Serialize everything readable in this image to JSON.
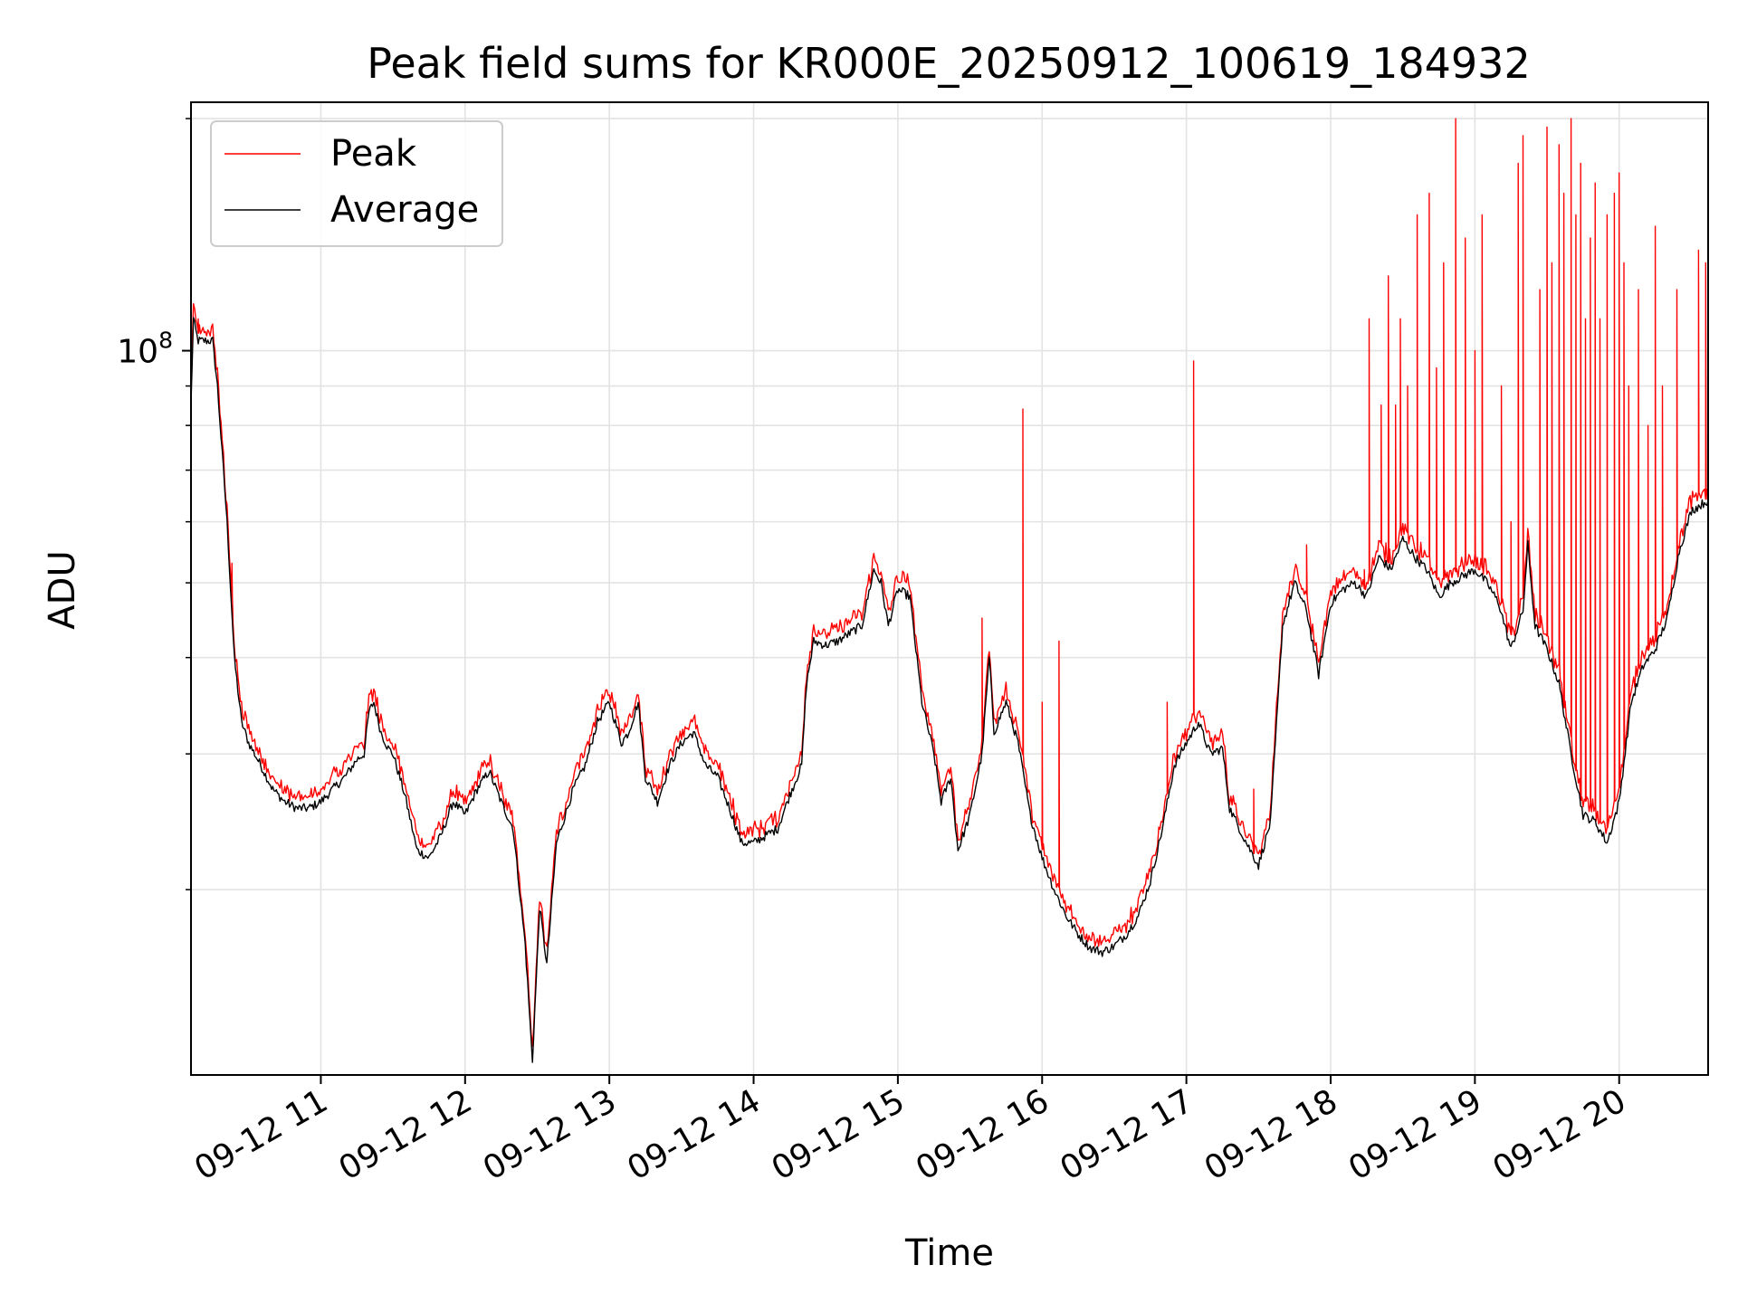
{
  "chart_data": {
    "type": "line",
    "title": "Peak field sums for KR000E_20250912_100619_184932",
    "xlabel": "Time",
    "ylabel": "ADU",
    "y_scale": "log",
    "ylim": [
      11500000,
      210000000
    ],
    "xlim": [
      "09-12 10:06",
      "09-12 20:37"
    ],
    "grid": true,
    "legend_position": "upper-left",
    "x_ticks": [
      "09-12 11",
      "09-12 12",
      "09-12 13",
      "09-12 14",
      "09-12 15",
      "09-12 16",
      "09-12 17",
      "09-12 18",
      "09-12 19",
      "09-12 20"
    ],
    "y_ticks": [
      {
        "value": 100000000,
        "label": "10",
        "exponent": "8"
      }
    ],
    "series": [
      {
        "name": "Peak",
        "color": "#ff0000"
      },
      {
        "name": "Average",
        "color": "#000000"
      }
    ],
    "average_points": [
      [
        "10:06",
        85000000
      ],
      [
        "10:07",
        110000000
      ],
      [
        "10:08",
        106000000
      ],
      [
        "10:09",
        103000000
      ],
      [
        "10:12",
        103000000
      ],
      [
        "10:15",
        103000000
      ],
      [
        "10:17",
        90000000
      ],
      [
        "10:21",
        60000000
      ],
      [
        "10:24",
        40000000
      ],
      [
        "10:27",
        33000000
      ],
      [
        "10:30",
        31000000
      ],
      [
        "10:35",
        29000000
      ],
      [
        "10:40",
        27000000
      ],
      [
        "10:45",
        26000000
      ],
      [
        "10:50",
        25500000
      ],
      [
        "10:55",
        25500000
      ],
      [
        "11:00",
        26000000
      ],
      [
        "11:05",
        27000000
      ],
      [
        "11:10",
        28000000
      ],
      [
        "11:15",
        29500000
      ],
      [
        "11:18",
        30000000
      ],
      [
        "11:20",
        34000000
      ],
      [
        "11:22",
        35000000
      ],
      [
        "11:25",
        32000000
      ],
      [
        "11:28",
        30500000
      ],
      [
        "11:30",
        30000000
      ],
      [
        "11:35",
        26500000
      ],
      [
        "11:40",
        22500000
      ],
      [
        "11:45",
        22000000
      ],
      [
        "11:50",
        23500000
      ],
      [
        "11:55",
        26000000
      ],
      [
        "12:00",
        25000000
      ],
      [
        "12:05",
        27000000
      ],
      [
        "12:10",
        28500000
      ],
      [
        "12:15",
        26000000
      ],
      [
        "12:20",
        24000000
      ],
      [
        "12:25",
        17000000
      ],
      [
        "12:28",
        12000000
      ],
      [
        "12:31",
        19000000
      ],
      [
        "12:34",
        16000000
      ],
      [
        "12:38",
        23000000
      ],
      [
        "12:45",
        27000000
      ],
      [
        "12:50",
        29000000
      ],
      [
        "12:55",
        33000000
      ],
      [
        "13:00",
        35000000
      ],
      [
        "13:05",
        31000000
      ],
      [
        "13:08",
        32000000
      ],
      [
        "13:12",
        35000000
      ],
      [
        "13:15",
        28000000
      ],
      [
        "13:20",
        26000000
      ],
      [
        "13:25",
        29000000
      ],
      [
        "13:30",
        31000000
      ],
      [
        "13:35",
        32000000
      ],
      [
        "13:40",
        29000000
      ],
      [
        "13:45",
        28000000
      ],
      [
        "13:50",
        25500000
      ],
      [
        "13:55",
        23000000
      ],
      [
        "14:00",
        23000000
      ],
      [
        "14:05",
        23500000
      ],
      [
        "14:10",
        24000000
      ],
      [
        "14:15",
        26500000
      ],
      [
        "14:20",
        29000000
      ],
      [
        "14:22",
        37000000
      ],
      [
        "14:25",
        42000000
      ],
      [
        "14:30",
        41500000
      ],
      [
        "14:35",
        42000000
      ],
      [
        "14:40",
        43000000
      ],
      [
        "14:45",
        44000000
      ],
      [
        "14:50",
        52000000
      ],
      [
        "14:53",
        50000000
      ],
      [
        "14:56",
        44000000
      ],
      [
        "15:00",
        49000000
      ],
      [
        "15:05",
        48000000
      ],
      [
        "15:10",
        35000000
      ],
      [
        "15:15",
        30000000
      ],
      [
        "15:18",
        26000000
      ],
      [
        "15:22",
        28000000
      ],
      [
        "15:25",
        22500000
      ],
      [
        "15:30",
        25000000
      ],
      [
        "15:35",
        30000000
      ],
      [
        "15:38",
        40000000
      ],
      [
        "15:40",
        32000000
      ],
      [
        "15:45",
        35000000
      ],
      [
        "15:50",
        31000000
      ],
      [
        "15:55",
        25000000
      ],
      [
        "16:00",
        22000000
      ],
      [
        "16:05",
        20000000
      ],
      [
        "16:10",
        18500000
      ],
      [
        "16:15",
        17500000
      ],
      [
        "16:20",
        16800000
      ],
      [
        "16:25",
        16600000
      ],
      [
        "16:30",
        16900000
      ],
      [
        "16:35",
        17500000
      ],
      [
        "16:40",
        18500000
      ],
      [
        "16:45",
        20500000
      ],
      [
        "16:50",
        24000000
      ],
      [
        "16:55",
        29000000
      ],
      [
        "17:00",
        31000000
      ],
      [
        "17:05",
        33000000
      ],
      [
        "17:10",
        30000000
      ],
      [
        "17:15",
        30500000
      ],
      [
        "17:18",
        25500000
      ],
      [
        "17:25",
        23000000
      ],
      [
        "17:30",
        21500000
      ],
      [
        "17:35",
        24500000
      ],
      [
        "17:40",
        44000000
      ],
      [
        "17:45",
        50000000
      ],
      [
        "17:50",
        46000000
      ],
      [
        "17:55",
        38000000
      ],
      [
        "18:00",
        47000000
      ],
      [
        "18:05",
        49000000
      ],
      [
        "18:10",
        50000000
      ],
      [
        "18:15",
        48000000
      ],
      [
        "18:20",
        54000000
      ],
      [
        "18:25",
        52000000
      ],
      [
        "18:30",
        57000000
      ],
      [
        "18:35",
        54000000
      ],
      [
        "18:40",
        52000000
      ],
      [
        "18:45",
        48000000
      ],
      [
        "18:50",
        50000000
      ],
      [
        "18:55",
        51000000
      ],
      [
        "19:00",
        52000000
      ],
      [
        "19:05",
        50000000
      ],
      [
        "19:10",
        47000000
      ],
      [
        "19:15",
        41000000
      ],
      [
        "19:20",
        46000000
      ],
      [
        "19:22",
        56000000
      ],
      [
        "19:25",
        44000000
      ],
      [
        "19:30",
        41000000
      ],
      [
        "19:35",
        37000000
      ],
      [
        "19:40",
        30000000
      ],
      [
        "19:45",
        25000000
      ],
      [
        "19:50",
        24500000
      ],
      [
        "19:55",
        23000000
      ],
      [
        "20:00",
        26000000
      ],
      [
        "20:05",
        35000000
      ],
      [
        "20:10",
        39000000
      ],
      [
        "20:15",
        41000000
      ],
      [
        "20:20",
        45000000
      ],
      [
        "20:25",
        55000000
      ],
      [
        "20:30",
        62000000
      ],
      [
        "20:37",
        64000000
      ]
    ],
    "peak_spikes": [
      [
        "10:09",
        110000000
      ],
      [
        "10:23",
        53000000
      ],
      [
        "15:35",
        45000000
      ],
      [
        "15:52",
        84000000
      ],
      [
        "16:00",
        35000000
      ],
      [
        "16:07",
        42000000
      ],
      [
        "16:52",
        35000000
      ],
      [
        "17:03",
        97000000
      ],
      [
        "17:28",
        27000000
      ],
      [
        "17:50",
        56000000
      ],
      [
        "18:14",
        52000000
      ],
      [
        "18:16",
        110000000
      ],
      [
        "18:21",
        85000000
      ],
      [
        "18:24",
        125000000
      ],
      [
        "18:27",
        85000000
      ],
      [
        "18:29",
        110000000
      ],
      [
        "18:32",
        90000000
      ],
      [
        "18:36",
        150000000
      ],
      [
        "18:41",
        160000000
      ],
      [
        "18:44",
        95000000
      ],
      [
        "18:47",
        130000000
      ],
      [
        "18:52",
        200000000
      ],
      [
        "18:56",
        140000000
      ],
      [
        "19:00",
        100000000
      ],
      [
        "19:03",
        150000000
      ],
      [
        "19:11",
        90000000
      ],
      [
        "19:15",
        60000000
      ],
      [
        "19:18",
        175000000
      ],
      [
        "19:20",
        190000000
      ],
      [
        "19:27",
        120000000
      ],
      [
        "19:30",
        195000000
      ],
      [
        "19:32",
        130000000
      ],
      [
        "19:35",
        185000000
      ],
      [
        "19:37",
        160000000
      ],
      [
        "19:40",
        200000000
      ],
      [
        "19:42",
        150000000
      ],
      [
        "19:44",
        175000000
      ],
      [
        "19:46",
        110000000
      ],
      [
        "19:48",
        140000000
      ],
      [
        "19:50",
        165000000
      ],
      [
        "19:52",
        110000000
      ],
      [
        "19:55",
        150000000
      ],
      [
        "19:58",
        160000000
      ],
      [
        "20:00",
        170000000
      ],
      [
        "20:02",
        130000000
      ],
      [
        "20:04",
        90000000
      ],
      [
        "20:08",
        120000000
      ],
      [
        "20:12",
        80000000
      ],
      [
        "20:15",
        145000000
      ],
      [
        "20:18",
        90000000
      ],
      [
        "20:24",
        120000000
      ],
      [
        "20:33",
        135000000
      ],
      [
        "20:36",
        130000000
      ]
    ]
  }
}
